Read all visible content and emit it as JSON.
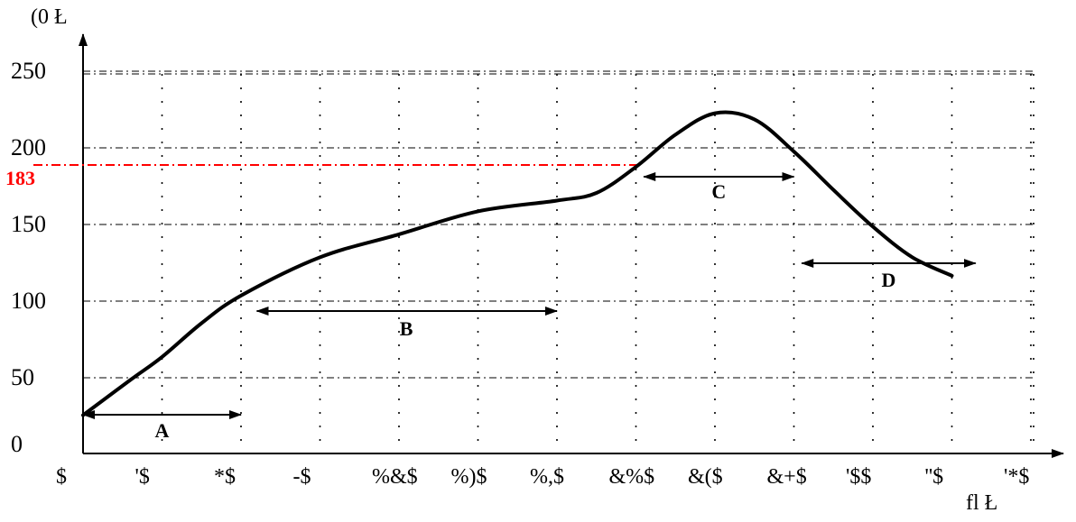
{
  "chart_data": {
    "type": "line",
    "title": "",
    "ylabel": "(0   Ł",
    "xlabel": "fl        Ł",
    "ylim": [
      0,
      250
    ],
    "yticks": [
      0,
      50,
      100,
      150,
      200,
      250
    ],
    "xticks": [
      "$",
      "'$",
      "*$",
      "-$",
      "%&$",
      "%)$",
      "%,$",
      "&%$",
      "&($",
      "&+$",
      "'$$",
      "''$",
      "'*$"
    ],
    "grid": true,
    "series": [
      {
        "x": [
          0,
          0.6,
          1,
          1.5,
          2,
          3,
          4,
          5,
          6,
          6.5,
          7,
          7.5,
          8,
          8.5,
          9,
          9.5,
          10,
          10.5,
          11
        ],
        "values": [
          25,
          48,
          63,
          85,
          103,
          128,
          143,
          158,
          165,
          170,
          187,
          208,
          222,
          218,
          197,
          172,
          148,
          128,
          116
        ]
      }
    ],
    "reference_line": {
      "value": 183,
      "label": "183",
      "color": "#ff0000"
    },
    "regions": [
      {
        "label": "A",
        "x_start": 0,
        "x_end": 2
      },
      {
        "label": "B",
        "x_start": 2.2,
        "x_end": 6
      },
      {
        "label": "C",
        "x_start": 7.1,
        "x_end": 9
      },
      {
        "label": "D",
        "x_start": 9.1,
        "x_end": 11.3
      }
    ]
  }
}
